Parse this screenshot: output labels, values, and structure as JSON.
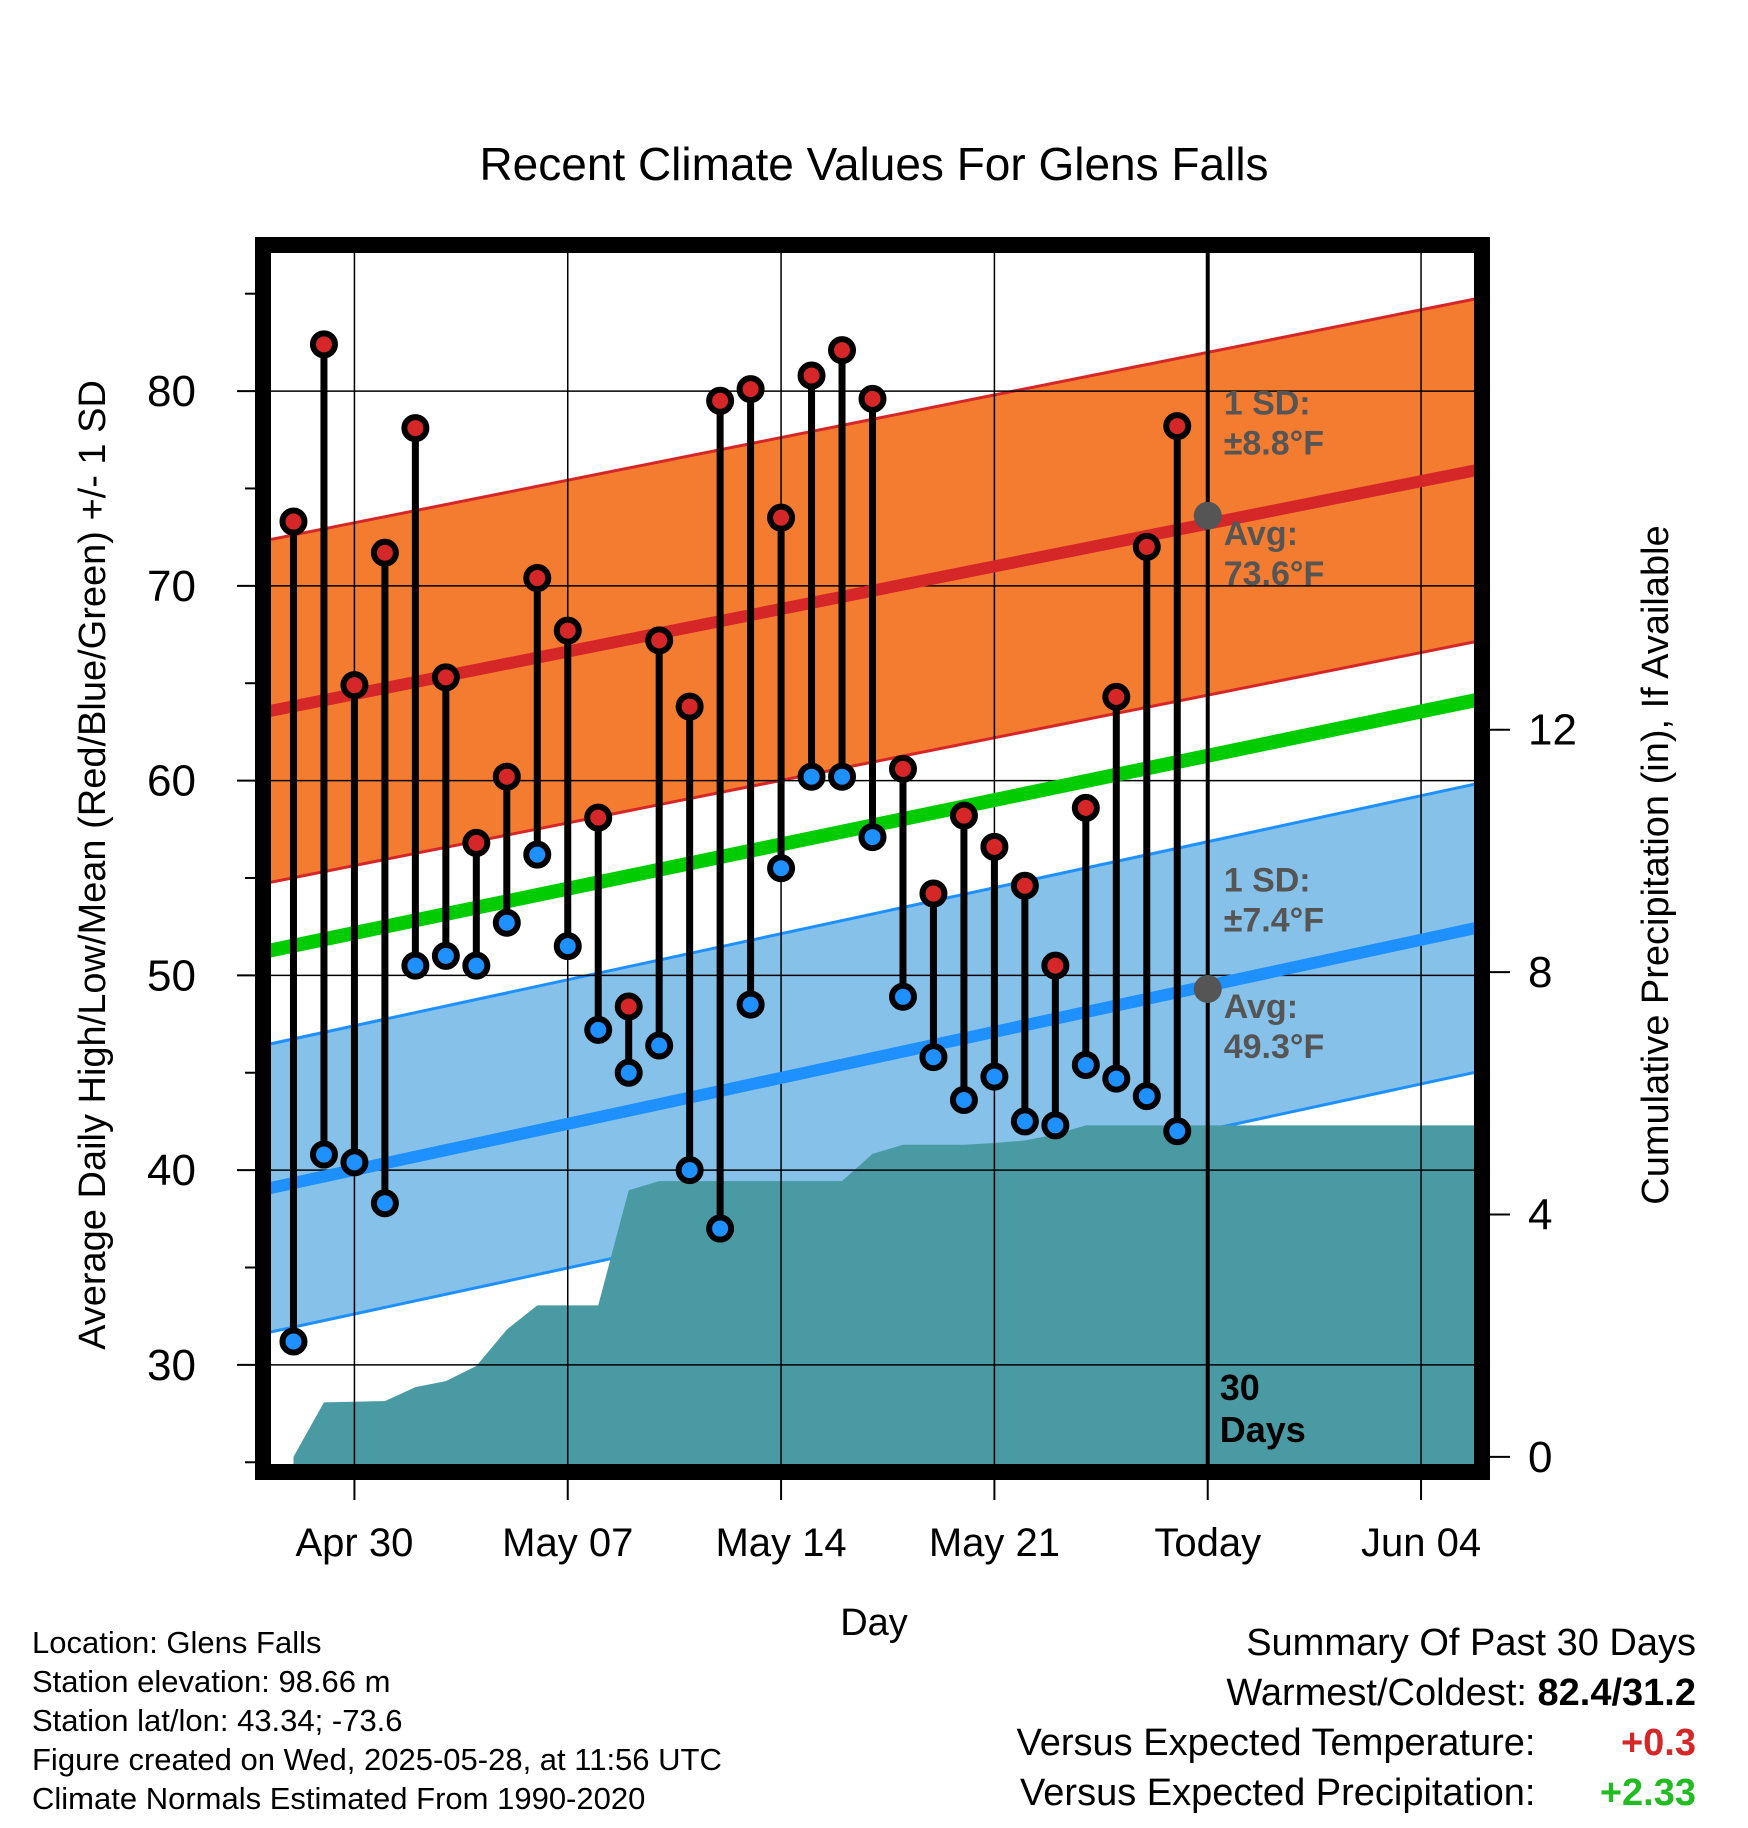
{
  "chart_data": {
    "type": "line",
    "title": "Recent Climate Values For Glens Falls",
    "xlabel": "Day",
    "ylabel": "Average Daily High/Low/Mean (Red/Blue/Green) +/- 1 SD",
    "y2label": "Cumulative Precipitation (in), If Available",
    "ylim": [
      24.5,
      87.5
    ],
    "y2lim": [
      -0.25,
      20.0
    ],
    "yticks": [
      30,
      40,
      50,
      60,
      70,
      80
    ],
    "y2ticks": [
      0,
      4,
      8,
      12
    ],
    "xlim": [
      "2025-04-27",
      "2025-06-06"
    ],
    "xtick_labels": [
      {
        "date": "2025-04-30",
        "label": "Apr 30"
      },
      {
        "date": "2025-05-07",
        "label": "May 07"
      },
      {
        "date": "2025-05-14",
        "label": "May 14"
      },
      {
        "date": "2025-05-21",
        "label": "May 21"
      },
      {
        "date": "2025-05-28",
        "label": "Today"
      },
      {
        "date": "2025-06-04",
        "label": "Jun 04"
      }
    ],
    "grid": true,
    "today": "2025-05-28",
    "period_label": [
      "30",
      "Days"
    ],
    "normals": {
      "high": {
        "start_date": "2025-04-27",
        "start": 63.5,
        "end_date": "2025-06-06",
        "end": 76.0,
        "sd_label": [
          "1 SD:",
          "±8.8°F"
        ],
        "avg_label": [
          "Avg:",
          "73.6°F"
        ],
        "today_avg": 73.6,
        "sd": 8.8
      },
      "low": {
        "start_date": "2025-04-27",
        "start": 39.0,
        "end_date": "2025-06-06",
        "end": 52.5,
        "sd_label": [
          "1 SD:",
          "±7.4°F"
        ],
        "avg_label": [
          "Avg:",
          "49.3°F"
        ],
        "today_avg": 49.3,
        "sd": 7.4
      },
      "mean": {
        "start_date": "2025-04-27",
        "start": 51.2,
        "end_date": "2025-06-06",
        "end": 64.2
      }
    },
    "series": [
      {
        "name": "High",
        "color": "#d62728",
        "x": [
          "2025-04-28",
          "2025-04-29",
          "2025-04-30",
          "2025-05-01",
          "2025-05-02",
          "2025-05-03",
          "2025-05-04",
          "2025-05-05",
          "2025-05-06",
          "2025-05-07",
          "2025-05-08",
          "2025-05-09",
          "2025-05-10",
          "2025-05-11",
          "2025-05-12",
          "2025-05-13",
          "2025-05-14",
          "2025-05-15",
          "2025-05-16",
          "2025-05-17",
          "2025-05-18",
          "2025-05-19",
          "2025-05-20",
          "2025-05-21",
          "2025-05-22",
          "2025-05-23",
          "2025-05-24",
          "2025-05-25",
          "2025-05-26",
          "2025-05-27"
        ],
        "values": [
          73.3,
          82.4,
          64.9,
          71.7,
          78.1,
          65.3,
          56.8,
          60.2,
          70.4,
          67.7,
          58.1,
          48.4,
          67.2,
          63.8,
          79.5,
          80.1,
          73.5,
          80.8,
          82.1,
          79.6,
          60.6,
          54.2,
          58.2,
          56.6,
          54.6,
          50.5,
          58.6,
          64.3,
          72.0,
          78.2
        ]
      },
      {
        "name": "Low",
        "color": "#1e90ff",
        "x": [
          "2025-04-28",
          "2025-04-29",
          "2025-04-30",
          "2025-05-01",
          "2025-05-02",
          "2025-05-03",
          "2025-05-04",
          "2025-05-05",
          "2025-05-06",
          "2025-05-07",
          "2025-05-08",
          "2025-05-09",
          "2025-05-10",
          "2025-05-11",
          "2025-05-12",
          "2025-05-13",
          "2025-05-14",
          "2025-05-15",
          "2025-05-16",
          "2025-05-17",
          "2025-05-18",
          "2025-05-19",
          "2025-05-20",
          "2025-05-21",
          "2025-05-22",
          "2025-05-23",
          "2025-05-24",
          "2025-05-25",
          "2025-05-26",
          "2025-05-27"
        ],
        "values": [
          31.2,
          40.8,
          40.4,
          38.3,
          50.5,
          51.0,
          50.5,
          52.7,
          56.2,
          51.5,
          47.2,
          45.0,
          46.4,
          40.0,
          37.0,
          48.5,
          55.5,
          60.2,
          60.2,
          57.1,
          48.9,
          45.8,
          43.6,
          44.8,
          42.5,
          42.3,
          45.4,
          44.7,
          43.8,
          42.0
        ]
      },
      {
        "name": "Cumulative Precipitation",
        "color": "#4a9aa3",
        "x": [
          "2025-04-28",
          "2025-04-29",
          "2025-05-01",
          "2025-05-02",
          "2025-05-03",
          "2025-05-04",
          "2025-05-05",
          "2025-05-06",
          "2025-05-07",
          "2025-05-08",
          "2025-05-09",
          "2025-05-10",
          "2025-05-11",
          "2025-05-12",
          "2025-05-13",
          "2025-05-14",
          "2025-05-15",
          "2025-05-16",
          "2025-05-17",
          "2025-05-18",
          "2025-05-19",
          "2025-05-20",
          "2025-05-21",
          "2025-05-22",
          "2025-05-23",
          "2025-05-24",
          "2025-05-25",
          "2025-06-06"
        ],
        "values": [
          0.0,
          0.9,
          0.92,
          1.15,
          1.25,
          1.5,
          2.1,
          2.5,
          2.5,
          2.5,
          4.4,
          4.55,
          4.55,
          4.55,
          4.55,
          4.55,
          4.55,
          4.55,
          5.0,
          5.15,
          5.15,
          5.15,
          5.18,
          5.22,
          5.32,
          5.47,
          5.47,
          5.47
        ]
      }
    ]
  },
  "footer": {
    "location": "Location: Glens Falls",
    "elevation": "Station elevation: 98.66 m",
    "latlon": "Station lat/lon: 43.34; -73.6",
    "created": "Figure created on Wed, 2025-05-28, at 11:56 UTC",
    "normals": "Climate Normals Estimated From 1990-2020"
  },
  "summary": {
    "title": "Summary Of Past 30 Days",
    "warmest_label": "Warmest/Coldest:",
    "warmest_value": "82.4/31.2",
    "temp_label": "Versus Expected Temperature:",
    "temp_value": "+0.3",
    "temp_color": "#d62728",
    "precip_label": "Versus Expected Precipitation:",
    "precip_value": "+2.33",
    "precip_color": "#22bb22"
  },
  "colors": {
    "high_band": "#f47c30",
    "high_line": "#d62728",
    "low_band": "#85c1e9",
    "low_line": "#1e90ff",
    "mean_line": "#00cc00",
    "precip_fill": "#4a9aa3",
    "annotation": "#555555"
  }
}
